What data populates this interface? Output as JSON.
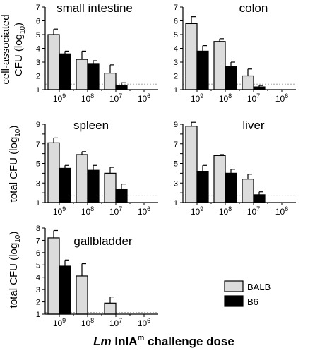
{
  "figure": {
    "xlabel_italic": "Lm",
    "xlabel_rest": " InlA",
    "xlabel_sup": "m",
    "xlabel_tail": " challenge dose"
  },
  "row_labels": {
    "row1_line1": "cell-associated",
    "row1_line2": "CFU (log",
    "row1_sub": "10",
    "row1_close": ")",
    "row2": "total CFU (log",
    "row2_sub": "10",
    "row2_close": ")",
    "row3": "total CFU (log",
    "row3_sub": "10",
    "row3_close": ")"
  },
  "legend": {
    "items": [
      {
        "label": "BALB",
        "color": "#dcdcdc"
      },
      {
        "label": "B6",
        "color": "#000000"
      }
    ]
  },
  "colors": {
    "balb": "#dcdcdc",
    "b6": "#000000",
    "detection_limit": "#999999"
  },
  "chart_data": [
    {
      "type": "bar",
      "title": "small intestine",
      "categories": [
        "10^9",
        "10^8",
        "10^7",
        "10^6"
      ],
      "ylim": [
        1,
        7
      ],
      "yticks": [
        1,
        2,
        3,
        4,
        5,
        6,
        7
      ],
      "detection_limit": 1.4,
      "series": [
        {
          "name": "BALB",
          "values": [
            5.0,
            3.2,
            2.2,
            null
          ],
          "errors": [
            0.4,
            0.6,
            0.6,
            null
          ]
        },
        {
          "name": "B6",
          "values": [
            3.6,
            2.9,
            1.3,
            null
          ],
          "errors": [
            0.2,
            0.2,
            0.2,
            null
          ]
        }
      ]
    },
    {
      "type": "bar",
      "title": "colon",
      "categories": [
        "10^9",
        "10^8",
        "10^7",
        "10^6"
      ],
      "ylim": [
        1,
        7
      ],
      "yticks": [
        1,
        2,
        3,
        4,
        5,
        6,
        7
      ],
      "detection_limit": 1.4,
      "series": [
        {
          "name": "BALB",
          "values": [
            5.8,
            4.5,
            2.0,
            null
          ],
          "errors": [
            0.5,
            0.2,
            0.5,
            null
          ]
        },
        {
          "name": "B6",
          "values": [
            3.8,
            2.7,
            1.2,
            null
          ],
          "errors": [
            0.4,
            0.3,
            0.1,
            null
          ]
        }
      ]
    },
    {
      "type": "bar",
      "title": "spleen",
      "categories": [
        "10^9",
        "10^8",
        "10^7",
        "10^6"
      ],
      "ylim": [
        1,
        9
      ],
      "yticks": [
        1,
        3,
        5,
        7,
        9
      ],
      "detection_limit": 1.7,
      "series": [
        {
          "name": "BALB",
          "values": [
            7.1,
            5.9,
            4.0,
            null
          ],
          "errors": [
            0.5,
            0.3,
            0.6,
            null
          ]
        },
        {
          "name": "B6",
          "values": [
            4.5,
            4.3,
            2.4,
            null
          ],
          "errors": [
            0.3,
            0.5,
            0.5,
            null
          ]
        }
      ]
    },
    {
      "type": "bar",
      "title": "liver",
      "categories": [
        "10^9",
        "10^8",
        "10^7",
        "10^6"
      ],
      "ylim": [
        1,
        9
      ],
      "yticks": [
        1,
        3,
        5,
        7,
        9
      ],
      "detection_limit": 1.7,
      "series": [
        {
          "name": "BALB",
          "values": [
            8.8,
            5.8,
            3.4,
            null
          ],
          "errors": [
            0.4,
            0.1,
            0.5,
            null
          ]
        },
        {
          "name": "B6",
          "values": [
            4.2,
            4.0,
            1.8,
            null
          ],
          "errors": [
            0.6,
            0.4,
            0.3,
            null
          ]
        }
      ]
    },
    {
      "type": "bar",
      "title": "gallbladder",
      "categories": [
        "10^9",
        "10^8",
        "10^7",
        "10^6"
      ],
      "ylim": [
        1,
        8
      ],
      "yticks": [
        1,
        2,
        3,
        4,
        5,
        6,
        7,
        8
      ],
      "detection_limit": 1.15,
      "series": [
        {
          "name": "BALB",
          "values": [
            7.2,
            4.1,
            1.9,
            null
          ],
          "errors": [
            0.6,
            1.0,
            0.5,
            null
          ]
        },
        {
          "name": "B6",
          "values": [
            4.9,
            null,
            null,
            null
          ],
          "errors": [
            0.5,
            null,
            null,
            null
          ]
        }
      ]
    }
  ]
}
